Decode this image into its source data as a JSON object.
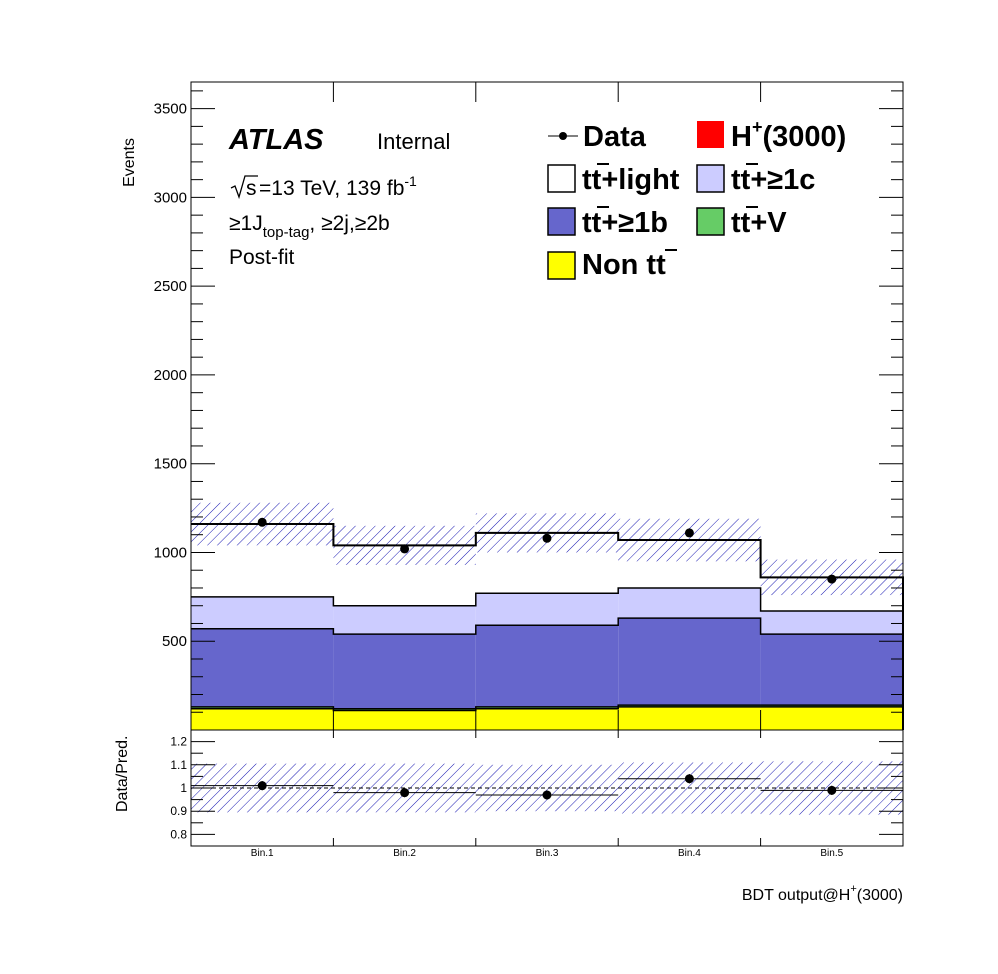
{
  "chart_data": {
    "type": "bar",
    "stacked": true,
    "categories": [
      "Bin.1",
      "Bin.2",
      "Bin.3",
      "Bin.4",
      "Bin.5"
    ],
    "ylabel": "Events",
    "xlabel_main": "BDT output@H",
    "xlabel_sup": "+",
    "xlabel_tail": "(3000)",
    "ylim": [
      0,
      3650
    ],
    "yticks": [
      500,
      1000,
      1500,
      2000,
      2500,
      3000,
      3500
    ],
    "series": [
      {
        "name": "Non tt",
        "color": "#ffff00",
        "values": [
          120,
          110,
          120,
          130,
          130
        ]
      },
      {
        "name": "tt+V",
        "color": "#66cc66",
        "values": [
          10,
          10,
          10,
          10,
          10
        ]
      },
      {
        "name": "tt+≥1b",
        "color": "#6666cc",
        "values": [
          440,
          420,
          460,
          490,
          400
        ]
      },
      {
        "name": "tt+≥1c",
        "color": "#ccccff",
        "values": [
          180,
          160,
          180,
          170,
          130
        ]
      },
      {
        "name": "tt+light",
        "color": "#ffffff",
        "values": [
          410,
          340,
          340,
          270,
          190
        ]
      },
      {
        "name": "H+(3000)",
        "color": "#ff0000",
        "values": [
          0,
          0,
          0,
          0,
          0
        ]
      }
    ],
    "total_prediction": [
      1160,
      1040,
      1110,
      1070,
      860
    ],
    "uncertainty": [
      120,
      110,
      110,
      120,
      100
    ],
    "data": [
      1170,
      1020,
      1080,
      1110,
      850
    ],
    "data_err": [
      20,
      20,
      20,
      20,
      20
    ],
    "ratio": {
      "ylabel": "Data/Pred.",
      "ylim": [
        0.75,
        1.25
      ],
      "yticks": [
        0.8,
        0.9,
        1,
        1.1,
        1.2
      ],
      "ytick_labels": [
        "0.8",
        "0.9",
        "1",
        "1.1",
        "1.2"
      ],
      "values": [
        1.01,
        0.98,
        0.97,
        1.04,
        0.99
      ],
      "err": [
        0.02,
        0.02,
        0.02,
        0.02,
        0.02
      ],
      "band": [
        0.105,
        0.105,
        0.1,
        0.11,
        0.115
      ]
    },
    "legend": {
      "data": "Data",
      "signal": "(3000)",
      "tt_light": "+light",
      "tt_1c": "+≥1c",
      "tt_1b": "+≥1b",
      "tt_v": "+V",
      "non_tt": "Non t"
    },
    "annotations": {
      "atlas": "ATLAS",
      "internal": "Internal",
      "energy": "=13 TeV, 139 fb",
      "energy_sup": "-1",
      "selection_a": "≥1J",
      "selection_sub": "top-tag",
      "selection_b": ", ≥2j,≥2b",
      "postfit": "Post-fit"
    }
  }
}
